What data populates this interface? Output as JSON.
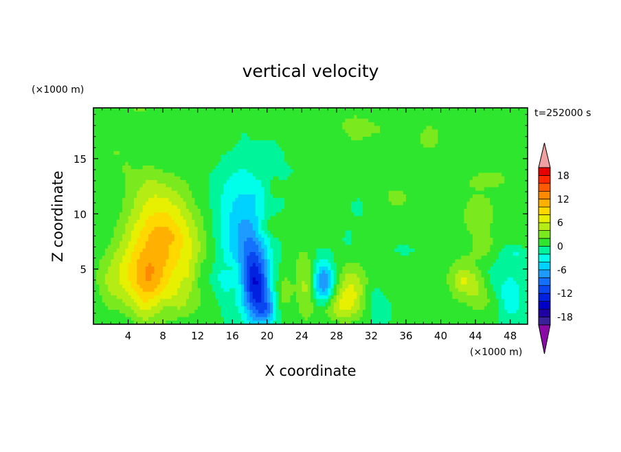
{
  "chart_data": {
    "type": "heatmap",
    "title": "vertical velocity",
    "xlabel": "X coordinate",
    "ylabel": "Z coordinate",
    "x_unit": "(×1000 m)",
    "y_unit": "(×1000 m)",
    "time_label": "t=252000 s",
    "xlim": [
      0,
      50
    ],
    "ylim": [
      0,
      19.6
    ],
    "x_ticks": [
      4,
      8,
      12,
      16,
      20,
      24,
      28,
      32,
      36,
      40,
      44,
      48
    ],
    "y_ticks": [
      5,
      10,
      15
    ],
    "colorbar": {
      "levels": [
        -20,
        -18,
        -16,
        -14,
        -12,
        -10,
        -8,
        -6,
        -4,
        -2,
        0,
        2,
        4,
        6,
        8,
        10,
        12,
        14,
        16,
        18,
        20
      ],
      "labels": [
        18,
        12,
        6,
        0,
        -6,
        -12,
        -18
      ],
      "colors": [
        "#3a1f9a",
        "#1e00a5",
        "#0000c8",
        "#0022e0",
        "#0a46f0",
        "#1470ff",
        "#1e9bff",
        "#00d2ff",
        "#00ffea",
        "#00f59a",
        "#2ee62e",
        "#7aea1e",
        "#b4ec14",
        "#e6f000",
        "#ffd800",
        "#ffb000",
        "#ff8a00",
        "#ff5a00",
        "#ff2800",
        "#e80000"
      ],
      "under_color": "#8a0aa8",
      "over_color": "#f0a0a0"
    },
    "features": [
      {
        "x": 7.2,
        "z": 6.5,
        "w": 10,
        "kind": "updraft core"
      },
      {
        "x": 6.2,
        "z": 3.5,
        "w": 12.5,
        "kind": "updraft maximum"
      },
      {
        "x": 18.8,
        "z": 3.5,
        "w": -13,
        "kind": "downdraft core"
      },
      {
        "x": 26.5,
        "z": 3.8,
        "w": -9.5,
        "kind": "downdraft"
      },
      {
        "x": 29.5,
        "z": 3.2,
        "w": 6.5,
        "kind": "updraft"
      },
      {
        "x": 42.5,
        "z": 3.8,
        "w": 5,
        "kind": "updraft"
      },
      {
        "x": 24.5,
        "z": 3.5,
        "w": 4.5,
        "kind": "updraft"
      }
    ]
  }
}
